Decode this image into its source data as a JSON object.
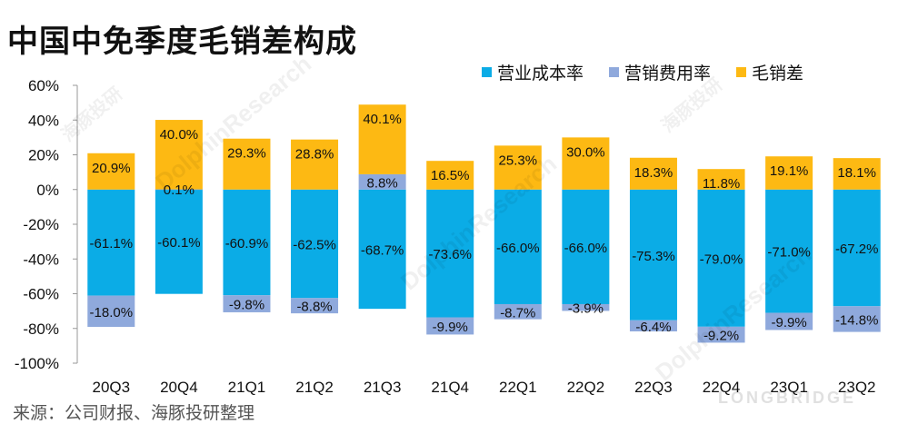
{
  "title": "中国中免季度毛销差构成",
  "source": "来源：公司财报、海豚投研整理",
  "watermark_text": "DolphinResearch",
  "watermark_cn": "海豚投研",
  "watermark_logo": "LONGBRIDGE",
  "colors": {
    "cost": "#0BACE6",
    "expense": "#8FA9DC",
    "margin": "#FDB913"
  },
  "chart_data": {
    "type": "bar",
    "stacked": true,
    "title": "中国中免季度毛销差构成",
    "categories": [
      "20Q3",
      "20Q4",
      "21Q1",
      "21Q2",
      "21Q3",
      "21Q4",
      "22Q1",
      "22Q2",
      "22Q3",
      "22Q4",
      "23Q1",
      "23Q2"
    ],
    "series": [
      {
        "name": "营业成本率",
        "values": [
          -61.1,
          -60.1,
          -60.9,
          -62.5,
          -68.7,
          -73.6,
          -66.0,
          -66.0,
          -75.3,
          -79.0,
          -71.0,
          -67.2
        ]
      },
      {
        "name": "营销费用率",
        "values": [
          -18.0,
          0.1,
          -9.8,
          -8.8,
          8.8,
          -9.9,
          -8.7,
          -3.9,
          -6.4,
          -9.2,
          -9.9,
          -14.8
        ]
      },
      {
        "name": "毛销差",
        "values": [
          20.9,
          40.0,
          29.3,
          28.8,
          40.1,
          16.5,
          25.3,
          30.0,
          18.3,
          11.8,
          19.1,
          18.1
        ]
      }
    ],
    "value_labels": {
      "营业成本率": [
        "-61.1%",
        "-60.1%",
        "-60.9%",
        "-62.5%",
        "-68.7%",
        "-73.6%",
        "-66.0%",
        "-66.0%",
        "-75.3%",
        "-79.0%",
        "-71.0%",
        "-67.2%"
      ],
      "营销费用率": [
        "-18.0%",
        "0.1%",
        "-9.8%",
        "-8.8%",
        "8.8%",
        "-9.9%",
        "-8.7%",
        "-3.9%",
        "-6.4%",
        "-9.2%",
        "-9.9%",
        "-14.8%"
      ],
      "毛销差": [
        "20.9%",
        "40.0%",
        "29.3%",
        "28.8%",
        "40.1%",
        "16.5%",
        "25.3%",
        "30.0%",
        "18.3%",
        "11.8%",
        "19.1%",
        "18.1%"
      ]
    },
    "yticks": [
      "60%",
      "40%",
      "20%",
      "0%",
      "-20%",
      "-40%",
      "-60%",
      "-80%",
      "-100%"
    ],
    "ylim": [
      -100,
      60
    ],
    "legend_position": "top-right",
    "grid": false
  }
}
